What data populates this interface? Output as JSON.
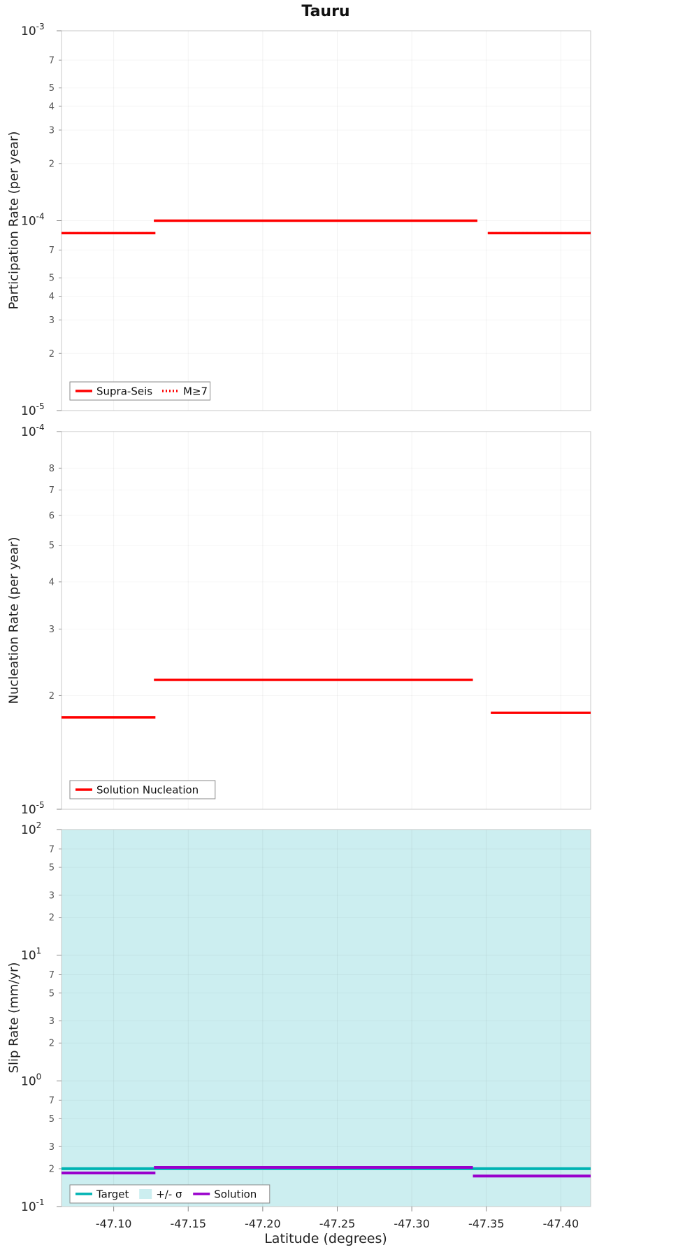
{
  "title": "Tauru",
  "xlabel": "Latitude (degrees)",
  "x_range": [
    -47.065,
    -47.42
  ],
  "x_ticks": [
    -47.1,
    -47.15,
    -47.2,
    -47.25,
    -47.3,
    -47.35,
    -47.4
  ],
  "colors": {
    "red": "#ff0000",
    "teal": "#00b3b3",
    "purple": "#9900cc",
    "band": "#cceef0",
    "grid": "rgba(0,0,0,0.05)",
    "axis_line": "#c9c9c9"
  },
  "chart_data": [
    {
      "type": "line",
      "panel": "participation",
      "ylabel": "Participation Rate (per year)",
      "yscale": "log",
      "ylim": [
        1e-05,
        0.001
      ],
      "minor_tick_mantissas": [
        7,
        5,
        4,
        3,
        2
      ],
      "series": [
        {
          "name": "Supra-Seis",
          "color": "red",
          "style": "solid",
          "width": 3.4,
          "segments": [
            {
              "x0": -47.065,
              "x1": -47.128,
              "y": 8.6e-05
            },
            {
              "x0": -47.127,
              "x1": -47.344,
              "y": 0.0001
            },
            {
              "x0": -47.351,
              "x1": -47.42,
              "y": 8.6e-05
            }
          ]
        },
        {
          "name": "M≥7",
          "color": "red",
          "style": "dotted",
          "width": 2.8,
          "segments": [
            {
              "x0": -47.065,
              "x1": -47.128,
              "y": 8.6e-05
            },
            {
              "x0": -47.127,
              "x1": -47.344,
              "y": 0.0001
            },
            {
              "x0": -47.351,
              "x1": -47.42,
              "y": 8.6e-05
            }
          ]
        }
      ],
      "legend": [
        {
          "label": "Supra-Seis",
          "swatch": "line",
          "color": "red",
          "style": "solid"
        },
        {
          "label": "M≥7",
          "swatch": "line",
          "color": "red",
          "style": "dotted"
        }
      ]
    },
    {
      "type": "line",
      "panel": "nucleation",
      "ylabel": "Nucleation Rate (per year)",
      "yscale": "log",
      "ylim": [
        1e-05,
        0.0001
      ],
      "minor_tick_mantissas": [
        8,
        7,
        6,
        5,
        4,
        3,
        2
      ],
      "series": [
        {
          "name": "Solution Nucleation",
          "color": "red",
          "style": "solid",
          "width": 3.4,
          "segments": [
            {
              "x0": -47.065,
              "x1": -47.128,
              "y": 1.75e-05
            },
            {
              "x0": -47.127,
              "x1": -47.341,
              "y": 2.2e-05
            },
            {
              "x0": -47.353,
              "x1": -47.42,
              "y": 1.8e-05
            }
          ]
        }
      ],
      "legend": [
        {
          "label": "Solution Nucleation",
          "swatch": "line",
          "color": "red",
          "style": "solid"
        }
      ]
    },
    {
      "type": "line",
      "panel": "slip-rate",
      "ylabel": "Slip Rate (mm/yr)",
      "yscale": "log",
      "ylim": [
        0.1,
        100
      ],
      "minor_tick_mantissas": [
        7,
        5,
        3,
        2
      ],
      "band": {
        "x0": -47.065,
        "x1": -47.42,
        "y_lo": 0.1,
        "y_hi": 100,
        "color": "band",
        "label": "+/- σ"
      },
      "series": [
        {
          "name": "Target",
          "color": "teal",
          "style": "solid",
          "width": 4,
          "segments": [
            {
              "x0": -47.065,
              "x1": -47.42,
              "y": 0.2
            }
          ]
        },
        {
          "name": "Solution",
          "color": "purple",
          "style": "solid",
          "width": 4,
          "segments": [
            {
              "x0": -47.065,
              "x1": -47.128,
              "y": 0.185
            },
            {
              "x0": -47.127,
              "x1": -47.341,
              "y": 0.205
            },
            {
              "x0": -47.341,
              "x1": -47.42,
              "y": 0.175
            }
          ]
        }
      ],
      "legend": [
        {
          "label": "Target",
          "swatch": "line",
          "color": "teal",
          "style": "solid"
        },
        {
          "label": "+/- σ",
          "swatch": "patch",
          "color": "band"
        },
        {
          "label": "Solution",
          "swatch": "line",
          "color": "purple",
          "style": "solid"
        }
      ]
    }
  ]
}
